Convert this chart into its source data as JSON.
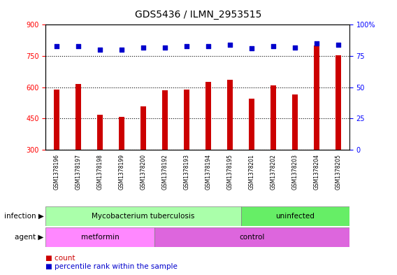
{
  "title": "GDS5436 / ILMN_2953515",
  "samples": [
    "GSM1378196",
    "GSM1378197",
    "GSM1378198",
    "GSM1378199",
    "GSM1378200",
    "GSM1378192",
    "GSM1378193",
    "GSM1378194",
    "GSM1378195",
    "GSM1378201",
    "GSM1378202",
    "GSM1378203",
    "GSM1378204",
    "GSM1378205"
  ],
  "counts": [
    590,
    615,
    470,
    457,
    510,
    585,
    590,
    625,
    635,
    545,
    610,
    565,
    800,
    755
  ],
  "percentiles": [
    83,
    83,
    80,
    80,
    82,
    82,
    83,
    83,
    84,
    81,
    83,
    82,
    85,
    84
  ],
  "bar_color": "#cc0000",
  "dot_color": "#0000cc",
  "ylim_left": [
    300,
    900
  ],
  "ylim_right": [
    0,
    100
  ],
  "yticks_left": [
    300,
    450,
    600,
    750,
    900
  ],
  "yticks_right": [
    0,
    25,
    50,
    75,
    100
  ],
  "infection_groups": [
    {
      "label": "Mycobacterium tuberculosis",
      "start": 0,
      "end": 9,
      "color": "#aaffaa"
    },
    {
      "label": "uninfected",
      "start": 9,
      "end": 14,
      "color": "#66ee66"
    }
  ],
  "agent_groups": [
    {
      "label": "metformin",
      "start": 0,
      "end": 5,
      "color": "#ff88ff"
    },
    {
      "label": "control",
      "start": 5,
      "end": 14,
      "color": "#dd66dd"
    }
  ],
  "infection_label": "infection",
  "agent_label": "agent",
  "legend_count_label": "count",
  "legend_pct_label": "percentile rank within the sample",
  "plot_bg_color": "#ffffff",
  "title_fontsize": 10,
  "tick_fontsize": 7,
  "bar_width": 0.25,
  "dot_size": 22
}
